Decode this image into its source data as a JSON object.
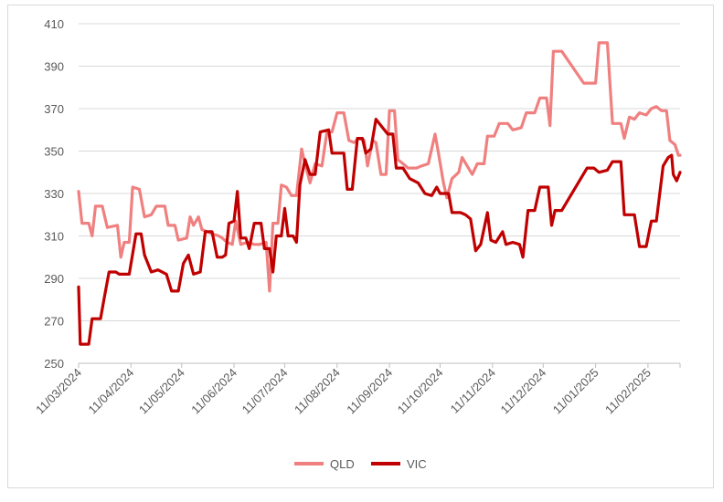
{
  "chart_data": {
    "type": "line",
    "title": "",
    "xlabel": "",
    "ylabel": "",
    "ylim": [
      250,
      410
    ],
    "yticks": [
      250,
      270,
      290,
      310,
      330,
      350,
      370,
      390,
      410
    ],
    "xlim": [
      "2024-03-11",
      "2025-03-02"
    ],
    "x_tick_labels": [
      "11/03/2024",
      "11/04/2024",
      "11/05/2024",
      "11/06/2024",
      "11/07/2024",
      "11/08/2024",
      "11/09/2024",
      "11/10/2024",
      "11/11/2024",
      "11/12/2024",
      "11/01/2025",
      "11/02/2025"
    ],
    "x_tick_dates": [
      "2024-03-11",
      "2024-04-11",
      "2024-05-11",
      "2024-06-11",
      "2024-07-11",
      "2024-08-11",
      "2024-09-11",
      "2024-10-11",
      "2024-11-11",
      "2024-12-11",
      "2025-01-11",
      "2025-02-11"
    ],
    "grid": "horizontal",
    "legend_position": "bottom",
    "series": [
      {
        "name": "QLD",
        "color": "#f08080",
        "points": [
          [
            "2024-03-11",
            331
          ],
          [
            "2024-03-13",
            316
          ],
          [
            "2024-03-17",
            316
          ],
          [
            "2024-03-19",
            310
          ],
          [
            "2024-03-21",
            324
          ],
          [
            "2024-03-25",
            324
          ],
          [
            "2024-03-28",
            314
          ],
          [
            "2024-04-03",
            315
          ],
          [
            "2024-04-05",
            300
          ],
          [
            "2024-04-07",
            307
          ],
          [
            "2024-04-10",
            307
          ],
          [
            "2024-04-12",
            333
          ],
          [
            "2024-04-16",
            332
          ],
          [
            "2024-04-19",
            319
          ],
          [
            "2024-04-23",
            320
          ],
          [
            "2024-04-26",
            324
          ],
          [
            "2024-05-01",
            324
          ],
          [
            "2024-05-03",
            315
          ],
          [
            "2024-05-07",
            315
          ],
          [
            "2024-05-09",
            308
          ],
          [
            "2024-05-14",
            309
          ],
          [
            "2024-05-16",
            319
          ],
          [
            "2024-05-18",
            315
          ],
          [
            "2024-05-21",
            319
          ],
          [
            "2024-05-23",
            313
          ],
          [
            "2024-05-26",
            312
          ],
          [
            "2024-05-29",
            311
          ],
          [
            "2024-06-02",
            310
          ],
          [
            "2024-06-04",
            309
          ],
          [
            "2024-06-07",
            307
          ],
          [
            "2024-06-10",
            306
          ],
          [
            "2024-06-12",
            317
          ],
          [
            "2024-06-15",
            306
          ],
          [
            "2024-06-19",
            307
          ],
          [
            "2024-06-23",
            306
          ],
          [
            "2024-06-26",
            306
          ],
          [
            "2024-06-30",
            307
          ],
          [
            "2024-07-02",
            284
          ],
          [
            "2024-07-04",
            316
          ],
          [
            "2024-07-07",
            316
          ],
          [
            "2024-07-09",
            334
          ],
          [
            "2024-07-12",
            333
          ],
          [
            "2024-07-15",
            329
          ],
          [
            "2024-07-18",
            329
          ],
          [
            "2024-07-21",
            351
          ],
          [
            "2024-07-23",
            344
          ],
          [
            "2024-07-26",
            335
          ],
          [
            "2024-07-29",
            344
          ],
          [
            "2024-08-02",
            343
          ],
          [
            "2024-08-05",
            359
          ],
          [
            "2024-08-08",
            359
          ],
          [
            "2024-08-11",
            368
          ],
          [
            "2024-08-15",
            368
          ],
          [
            "2024-08-18",
            355
          ],
          [
            "2024-08-21",
            354
          ],
          [
            "2024-08-24",
            356
          ],
          [
            "2024-08-27",
            355
          ],
          [
            "2024-08-29",
            343
          ],
          [
            "2024-09-01",
            355
          ],
          [
            "2024-09-03",
            354
          ],
          [
            "2024-09-06",
            339
          ],
          [
            "2024-09-09",
            339
          ],
          [
            "2024-09-11",
            369
          ],
          [
            "2024-09-14",
            369
          ],
          [
            "2024-09-16",
            346
          ],
          [
            "2024-09-19",
            344
          ],
          [
            "2024-09-22",
            342
          ],
          [
            "2024-09-27",
            342
          ],
          [
            "2024-09-30",
            343
          ],
          [
            "2024-10-04",
            344
          ],
          [
            "2024-10-08",
            358
          ],
          [
            "2024-10-10",
            349
          ],
          [
            "2024-10-13",
            335
          ],
          [
            "2024-10-15",
            328
          ],
          [
            "2024-10-18",
            337
          ],
          [
            "2024-10-22",
            340
          ],
          [
            "2024-10-24",
            347
          ],
          [
            "2024-10-27",
            343
          ],
          [
            "2024-10-30",
            339
          ],
          [
            "2024-11-02",
            344
          ],
          [
            "2024-11-06",
            344
          ],
          [
            "2024-11-08",
            357
          ],
          [
            "2024-11-12",
            357
          ],
          [
            "2024-11-15",
            363
          ],
          [
            "2024-11-20",
            363
          ],
          [
            "2024-11-23",
            360
          ],
          [
            "2024-11-28",
            361
          ],
          [
            "2024-12-01",
            368
          ],
          [
            "2024-12-06",
            368
          ],
          [
            "2024-12-09",
            375
          ],
          [
            "2024-12-13",
            375
          ],
          [
            "2024-12-15",
            362
          ],
          [
            "2024-12-17",
            397
          ],
          [
            "2024-12-22",
            397
          ],
          [
            "2025-01-04",
            382
          ],
          [
            "2025-01-11",
            382
          ],
          [
            "2025-01-13",
            401
          ],
          [
            "2025-01-18",
            401
          ],
          [
            "2025-01-21",
            363
          ],
          [
            "2025-01-26",
            363
          ],
          [
            "2025-01-28",
            356
          ],
          [
            "2025-01-31",
            366
          ],
          [
            "2025-02-03",
            365
          ],
          [
            "2025-02-06",
            368
          ],
          [
            "2025-02-10",
            367
          ],
          [
            "2025-02-13",
            370
          ],
          [
            "2025-02-16",
            371
          ],
          [
            "2025-02-19",
            369
          ],
          [
            "2025-02-22",
            369
          ],
          [
            "2025-02-24",
            355
          ],
          [
            "2025-02-27",
            353
          ],
          [
            "2025-03-01",
            348
          ],
          [
            "2025-03-02",
            348
          ]
        ]
      },
      {
        "name": "VIC",
        "color": "#c00000",
        "points": [
          [
            "2024-03-11",
            286
          ],
          [
            "2024-03-12",
            259
          ],
          [
            "2024-03-17",
            259
          ],
          [
            "2024-03-19",
            271
          ],
          [
            "2024-03-24",
            271
          ],
          [
            "2024-03-26",
            280
          ],
          [
            "2024-03-29",
            293
          ],
          [
            "2024-04-02",
            293
          ],
          [
            "2024-04-04",
            292
          ],
          [
            "2024-04-06",
            292
          ],
          [
            "2024-04-10",
            292
          ],
          [
            "2024-04-14",
            311
          ],
          [
            "2024-04-17",
            311
          ],
          [
            "2024-04-19",
            301
          ],
          [
            "2024-04-23",
            293
          ],
          [
            "2024-04-27",
            294
          ],
          [
            "2024-05-02",
            292
          ],
          [
            "2024-05-05",
            284
          ],
          [
            "2024-05-09",
            284
          ],
          [
            "2024-05-12",
            297
          ],
          [
            "2024-05-15",
            301
          ],
          [
            "2024-05-18",
            292
          ],
          [
            "2024-05-22",
            293
          ],
          [
            "2024-05-25",
            312
          ],
          [
            "2024-05-29",
            312
          ],
          [
            "2024-06-01",
            300
          ],
          [
            "2024-06-04",
            300
          ],
          [
            "2024-06-06",
            301
          ],
          [
            "2024-06-08",
            316
          ],
          [
            "2024-06-11",
            317
          ],
          [
            "2024-06-13",
            331
          ],
          [
            "2024-06-15",
            309
          ],
          [
            "2024-06-18",
            309
          ],
          [
            "2024-06-20",
            304
          ],
          [
            "2024-06-23",
            316
          ],
          [
            "2024-06-27",
            316
          ],
          [
            "2024-06-29",
            304
          ],
          [
            "2024-07-02",
            304
          ],
          [
            "2024-07-04",
            293
          ],
          [
            "2024-07-06",
            310
          ],
          [
            "2024-07-09",
            310
          ],
          [
            "2024-07-11",
            323
          ],
          [
            "2024-07-13",
            310
          ],
          [
            "2024-07-16",
            310
          ],
          [
            "2024-07-18",
            307
          ],
          [
            "2024-07-20",
            334
          ],
          [
            "2024-07-23",
            346
          ],
          [
            "2024-07-26",
            339
          ],
          [
            "2024-07-29",
            339
          ],
          [
            "2024-08-01",
            359
          ],
          [
            "2024-08-06",
            360
          ],
          [
            "2024-08-08",
            349
          ],
          [
            "2024-08-11",
            349
          ],
          [
            "2024-08-15",
            349
          ],
          [
            "2024-08-17",
            332
          ],
          [
            "2024-08-20",
            332
          ],
          [
            "2024-08-23",
            356
          ],
          [
            "2024-08-26",
            356
          ],
          [
            "2024-08-28",
            349
          ],
          [
            "2024-08-31",
            351
          ],
          [
            "2024-09-03",
            365
          ],
          [
            "2024-09-06",
            362
          ],
          [
            "2024-09-10",
            358
          ],
          [
            "2024-09-13",
            358
          ],
          [
            "2024-09-15",
            342
          ],
          [
            "2024-09-19",
            342
          ],
          [
            "2024-09-23",
            337
          ],
          [
            "2024-09-28",
            335
          ],
          [
            "2024-10-02",
            330
          ],
          [
            "2024-10-06",
            329
          ],
          [
            "2024-10-09",
            333
          ],
          [
            "2024-10-11",
            330
          ],
          [
            "2024-10-16",
            330
          ],
          [
            "2024-10-18",
            321
          ],
          [
            "2024-10-23",
            321
          ],
          [
            "2024-10-26",
            320
          ],
          [
            "2024-10-29",
            318
          ],
          [
            "2024-11-01",
            303
          ],
          [
            "2024-11-04",
            306
          ],
          [
            "2024-11-08",
            321
          ],
          [
            "2024-11-10",
            308
          ],
          [
            "2024-11-13",
            307
          ],
          [
            "2024-11-17",
            312
          ],
          [
            "2024-11-19",
            306
          ],
          [
            "2024-11-23",
            307
          ],
          [
            "2024-11-27",
            306
          ],
          [
            "2024-11-29",
            300
          ],
          [
            "2024-12-02",
            322
          ],
          [
            "2024-12-06",
            322
          ],
          [
            "2024-12-09",
            333
          ],
          [
            "2024-12-14",
            333
          ],
          [
            "2024-12-16",
            315
          ],
          [
            "2024-12-18",
            322
          ],
          [
            "2024-12-22",
            322
          ],
          [
            "2025-01-06",
            342
          ],
          [
            "2025-01-10",
            342
          ],
          [
            "2025-01-13",
            340
          ],
          [
            "2025-01-18",
            341
          ],
          [
            "2025-01-21",
            345
          ],
          [
            "2025-01-26",
            345
          ],
          [
            "2025-01-28",
            320
          ],
          [
            "2025-02-03",
            320
          ],
          [
            "2025-02-06",
            305
          ],
          [
            "2025-02-10",
            305
          ],
          [
            "2025-02-13",
            317
          ],
          [
            "2025-02-16",
            317
          ],
          [
            "2025-02-20",
            343
          ],
          [
            "2025-02-23",
            347
          ],
          [
            "2025-02-25",
            348
          ],
          [
            "2025-02-26",
            339
          ],
          [
            "2025-02-28",
            336
          ],
          [
            "2025-03-01",
            338
          ],
          [
            "2025-03-02",
            340
          ]
        ]
      }
    ]
  }
}
